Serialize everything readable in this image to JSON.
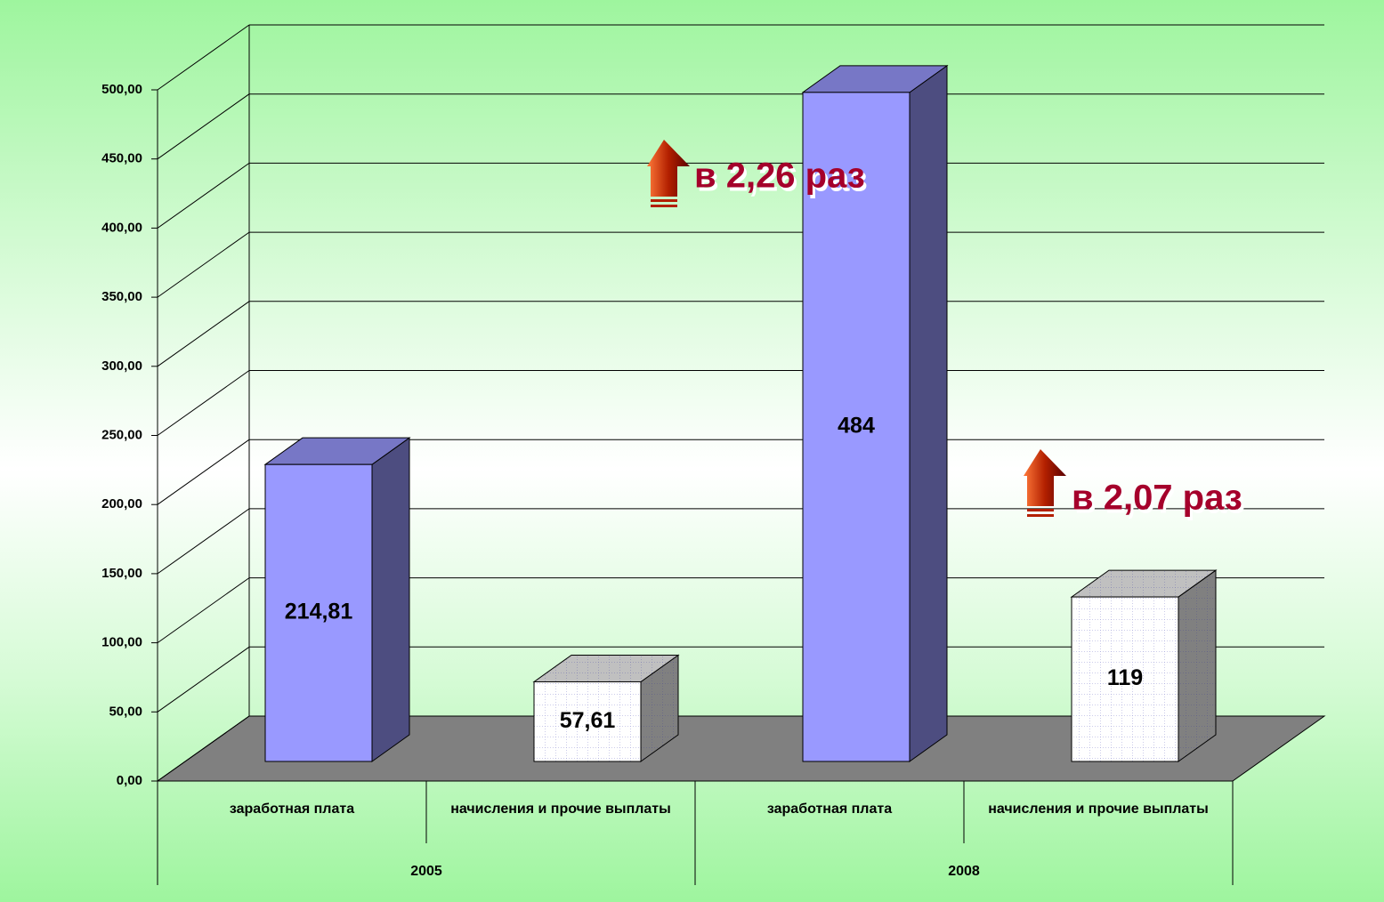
{
  "chart_data": {
    "type": "bar3d",
    "categories": [
      "заработная плата",
      "начисления и прочие выплаты",
      "заработная плата",
      "начисления и прочие выплаты"
    ],
    "groups": [
      "2005",
      "2008"
    ],
    "values": [
      214.81,
      57.61,
      484,
      119
    ],
    "value_labels": [
      "214,81",
      "57,61",
      "484",
      "119"
    ],
    "colors": [
      "#9999ff",
      "#ffffff",
      "#9999ff",
      "#ffffff"
    ],
    "ylim": [
      0,
      500
    ],
    "yticks": [
      {
        "value": 0,
        "label": "0,00"
      },
      {
        "value": 50,
        "label": "50,00"
      },
      {
        "value": 100,
        "label": "100,00"
      },
      {
        "value": 150,
        "label": "150,00"
      },
      {
        "value": 200,
        "label": "200,00"
      },
      {
        "value": 250,
        "label": "250,00"
      },
      {
        "value": 300,
        "label": "300,00"
      },
      {
        "value": 350,
        "label": "350,00"
      },
      {
        "value": 400,
        "label": "400,00"
      },
      {
        "value": 450,
        "label": "450,00"
      },
      {
        "value": 500,
        "label": "500,00"
      }
    ],
    "grid": true,
    "annotations": [
      "в 2,26 раз",
      "в 2,07 раз"
    ]
  }
}
